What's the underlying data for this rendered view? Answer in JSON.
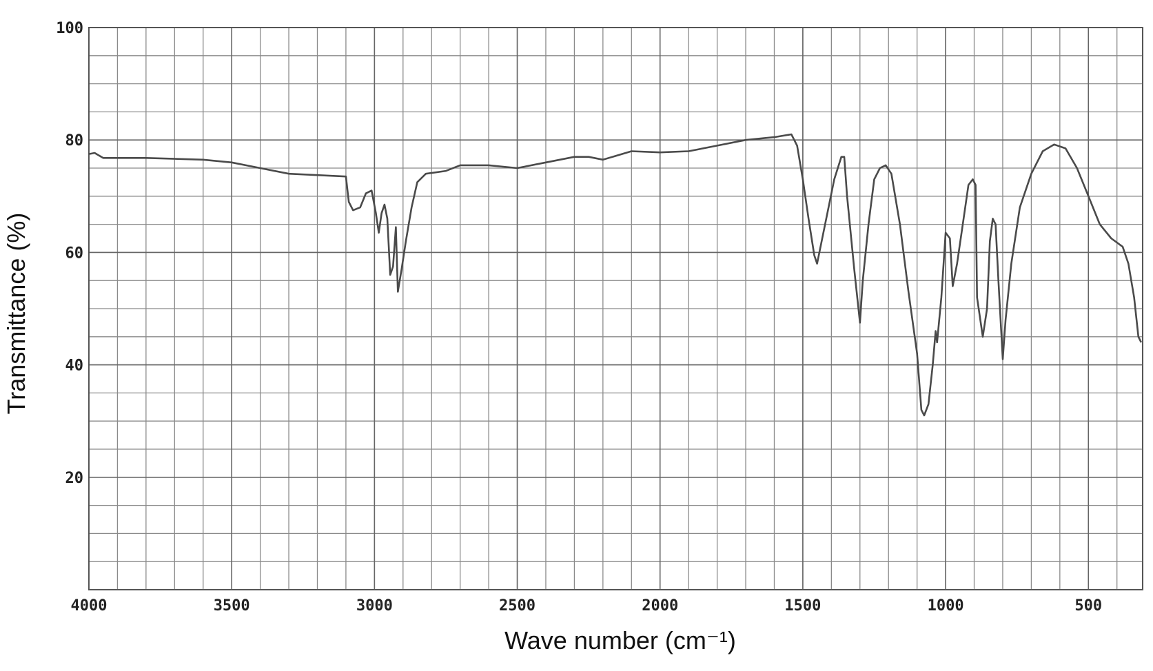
{
  "chart_data": {
    "type": "line",
    "x_label": "Wave number (cm⁻¹)",
    "y_label": "Transmittance (%)",
    "xlim": [
      4000,
      310
    ],
    "ylim": [
      0,
      100
    ],
    "xticks": [
      4000,
      3500,
      3000,
      2500,
      2000,
      1500,
      1000,
      500
    ],
    "yticks": [
      20,
      40,
      60,
      80,
      100
    ],
    "grid": {
      "x_step": 100,
      "y_step": 5
    },
    "color": "#4a4a4a",
    "x": [
      4000,
      3980,
      3950,
      3800,
      3600,
      3500,
      3400,
      3300,
      3100,
      3090,
      3075,
      3050,
      3030,
      3010,
      2995,
      2985,
      2975,
      2965,
      2955,
      2945,
      2935,
      2925,
      2918,
      2905,
      2890,
      2870,
      2850,
      2820,
      2750,
      2700,
      2600,
      2500,
      2400,
      2300,
      2250,
      2200,
      2100,
      2000,
      1900,
      1800,
      1700,
      1600,
      1540,
      1520,
      1500,
      1480,
      1460,
      1450,
      1430,
      1410,
      1390,
      1365,
      1355,
      1345,
      1320,
      1300,
      1290,
      1270,
      1250,
      1230,
      1210,
      1190,
      1160,
      1130,
      1100,
      1085,
      1075,
      1060,
      1045,
      1035,
      1030,
      1015,
      1000,
      985,
      975,
      960,
      940,
      920,
      905,
      895,
      890,
      870,
      855,
      845,
      835,
      825,
      815,
      800,
      790,
      770,
      740,
      700,
      660,
      620,
      580,
      540,
      500,
      460,
      420,
      380,
      360,
      340,
      325,
      315
    ],
    "values": [
      77.5,
      77.7,
      76.8,
      76.8,
      76.5,
      76,
      75,
      74,
      73.5,
      69,
      67.5,
      68,
      70.5,
      71,
      67,
      63.5,
      67,
      68.5,
      66,
      56,
      57.5,
      64.5,
      53,
      57,
      62,
      68,
      72.5,
      74,
      74.5,
      75.5,
      75.5,
      75,
      76,
      77,
      77,
      76.5,
      78,
      77.8,
      78,
      79,
      80,
      80.5,
      81,
      79,
      73,
      66,
      59.5,
      58,
      63,
      68,
      73,
      77,
      77,
      70,
      57,
      47.5,
      55,
      65,
      73,
      75,
      75.5,
      74,
      65,
      53,
      42,
      32,
      31,
      33,
      40,
      46,
      44,
      52,
      63.5,
      62.5,
      54,
      58,
      65,
      72,
      73,
      72,
      52,
      45,
      50,
      62,
      66,
      65,
      55,
      41,
      48,
      58,
      68,
      74,
      78,
      79.2,
      78.5,
      75,
      70,
      65,
      62.5,
      61,
      58,
      52,
      45,
      44
    ]
  }
}
